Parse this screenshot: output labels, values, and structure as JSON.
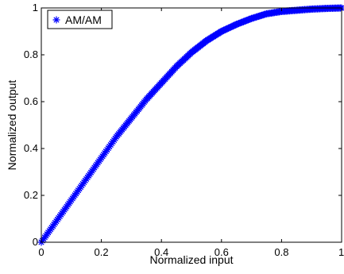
{
  "chart_data": {
    "type": "scatter",
    "title": "",
    "xlabel": "Normalized input",
    "ylabel": "Normalized output",
    "xlim": [
      0,
      1
    ],
    "ylim": [
      0,
      1
    ],
    "grid": false,
    "legend_position": "top-left",
    "x_ticks": [
      "0",
      "0.2",
      "0.4",
      "0.6",
      "0.8",
      "1"
    ],
    "y_ticks": [
      "0",
      "0.2",
      "0.4",
      "0.6",
      "0.8",
      "1"
    ],
    "series": [
      {
        "name": "AM/AM",
        "marker": "asterisk",
        "color": "#0000ff",
        "x": [
          0.0,
          0.05,
          0.1,
          0.15,
          0.2,
          0.25,
          0.3,
          0.35,
          0.4,
          0.45,
          0.5,
          0.55,
          0.6,
          0.65,
          0.7,
          0.75,
          0.8,
          0.85,
          0.9,
          0.95,
          1.0
        ],
        "y": [
          0.0,
          0.09,
          0.18,
          0.27,
          0.36,
          0.45,
          0.53,
          0.61,
          0.68,
          0.75,
          0.81,
          0.86,
          0.9,
          0.93,
          0.955,
          0.975,
          0.985,
          0.99,
          0.995,
          0.998,
          1.0
        ]
      }
    ]
  }
}
